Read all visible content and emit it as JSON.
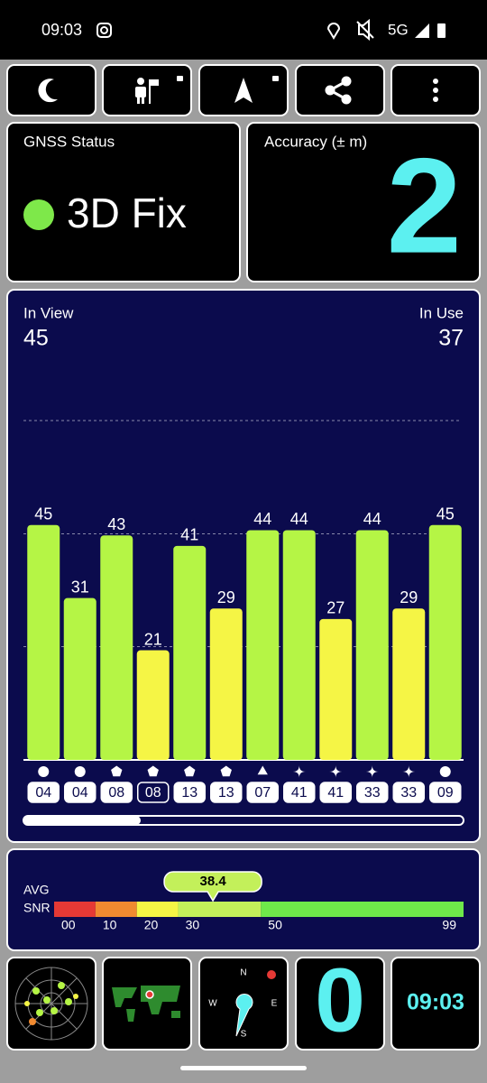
{
  "status_bar": {
    "time": "09:03",
    "network": "5G"
  },
  "gnss_status": {
    "title": "GNSS Status",
    "fix": "3D Fix",
    "fix_color": "#7ee84a"
  },
  "accuracy": {
    "title": "Accuracy (± m)",
    "value": 2,
    "color": "#5cf0f0"
  },
  "chart_data": {
    "type": "bar",
    "in_view_label": "In View",
    "in_view": 45,
    "in_use_label": "In Use",
    "in_use": 37,
    "categories": [
      "04",
      "04",
      "08",
      "08",
      "13",
      "13",
      "07",
      "41",
      "41",
      "33",
      "33",
      "09"
    ],
    "values": [
      45,
      31,
      43,
      21,
      41,
      29,
      44,
      44,
      27,
      44,
      29,
      45
    ],
    "colors": [
      "#b5f545",
      "#b5f545",
      "#b5f545",
      "#f5f545",
      "#b5f545",
      "#f5f545",
      "#b5f545",
      "#b5f545",
      "#f5f545",
      "#b5f545",
      "#f5f545",
      "#b5f545"
    ],
    "shapes": [
      "circle",
      "circle",
      "pentagon",
      "pentagon",
      "pentagon",
      "pentagon",
      "triangle",
      "star",
      "star",
      "star",
      "star",
      "circle"
    ],
    "used": [
      true,
      true,
      true,
      false,
      true,
      true,
      true,
      true,
      true,
      true,
      true,
      true
    ],
    "ylim": [
      0,
      65
    ],
    "gridlines": [
      21.7,
      43.3,
      65
    ]
  },
  "snr": {
    "label_top": "AVG",
    "label_bottom": "SNR",
    "avg": 38.4,
    "xlim": [
      0,
      99
    ],
    "ticks": [
      {
        "value": 0,
        "label": "00"
      },
      10,
      20,
      30,
      50,
      99
    ],
    "band_colors": [
      "#e53935",
      "#f08a30",
      "#f5f545",
      "#c3f05a",
      "#6ee84a"
    ]
  },
  "compass": {
    "n": "N",
    "e": "E",
    "s": "S",
    "w": "W"
  },
  "footer": {
    "satellites_in_fix": 0,
    "time": "09:03",
    "color": "#5cf0f0"
  }
}
